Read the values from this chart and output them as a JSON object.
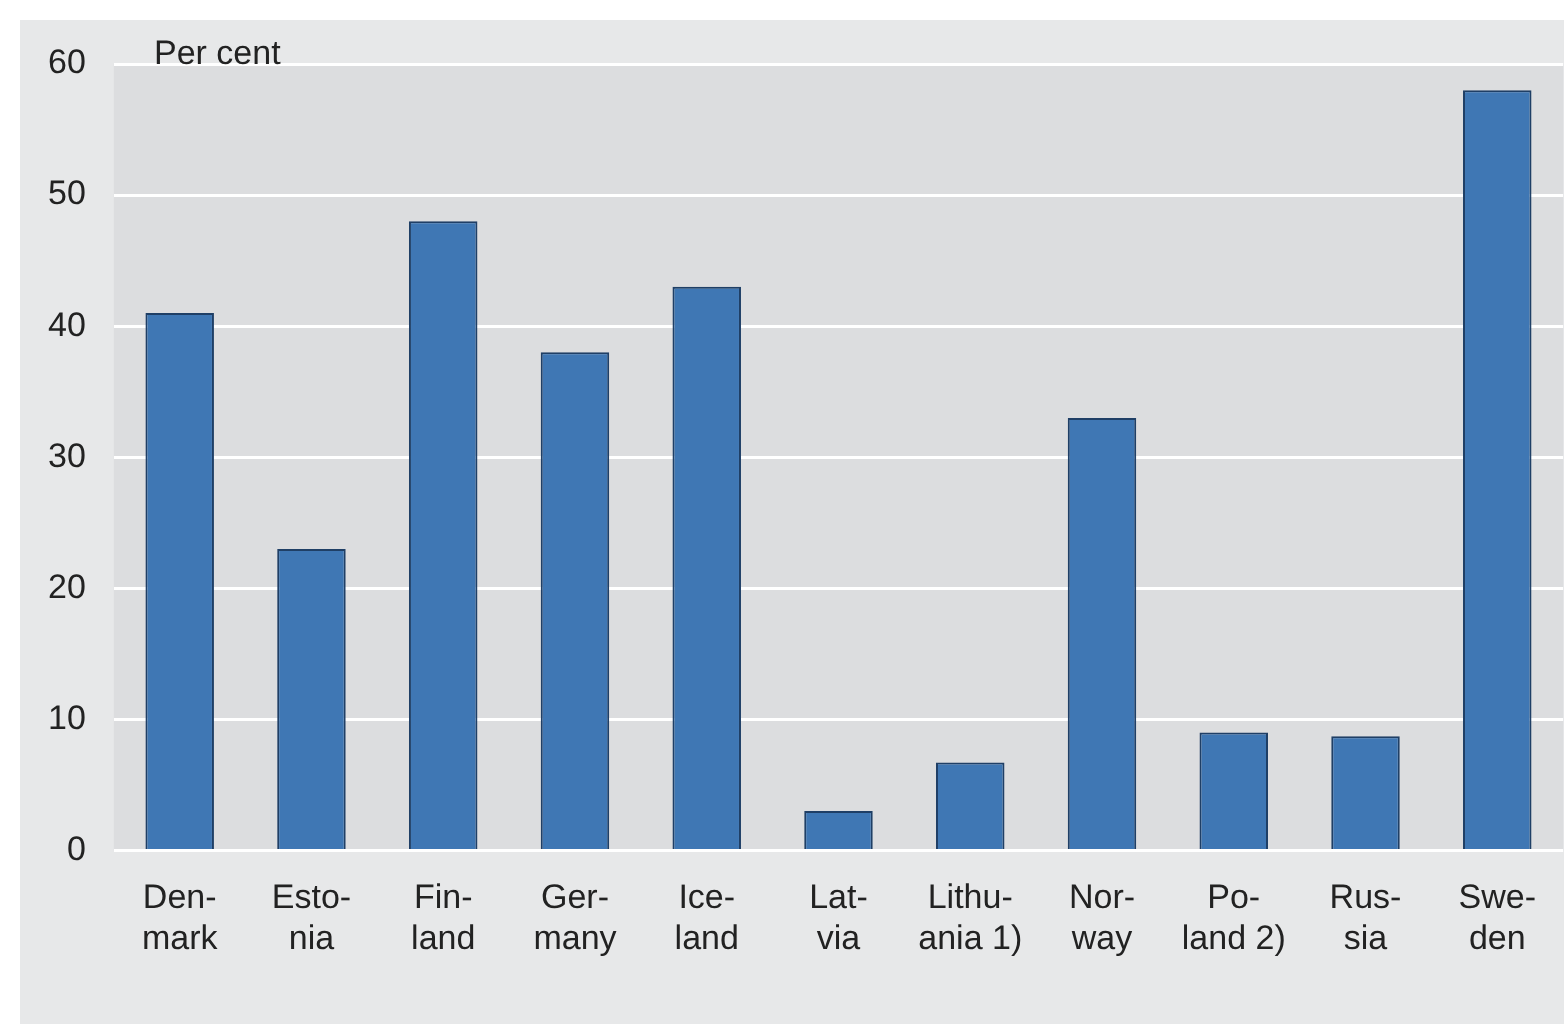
{
  "chart_data": {
    "type": "bar",
    "ylabel": "Per cent",
    "categories": [
      "Den-\nmark",
      "Esto-\nnia",
      "Fin-\nland",
      "Ger-\nmany",
      "Ice-\nland",
      "Lat-\nvia",
      "Lithu-\nania 1)",
      "Nor-\nway",
      "Po-\nland 2)",
      "Rus-\nsia",
      "Swe-\nden"
    ],
    "values": [
      41,
      23,
      48,
      38,
      43,
      3,
      6.7,
      33,
      9,
      8.7,
      58
    ],
    "color": "#3f77b4",
    "ylim": [
      0,
      60
    ],
    "yticks": [
      0,
      10,
      20,
      30,
      40,
      50,
      60
    ],
    "grid": "y",
    "legend": false
  }
}
